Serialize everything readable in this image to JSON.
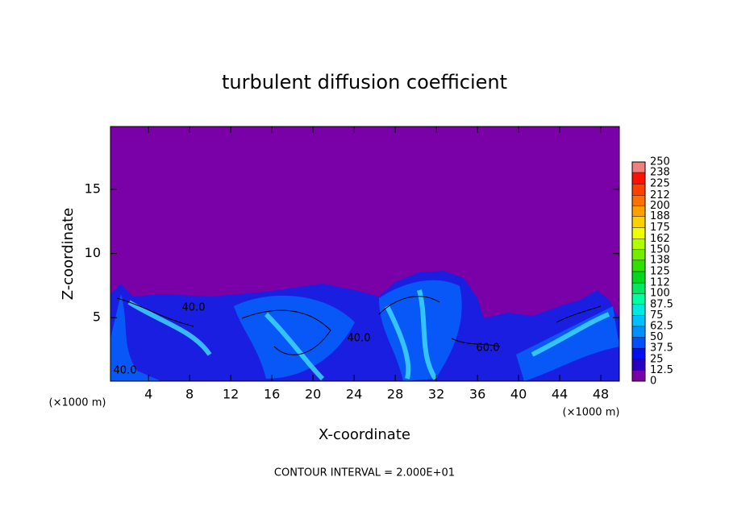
{
  "chart_data": {
    "type": "heatmap",
    "title": "turbulent diffusion coefficient",
    "xlabel": "X-coordinate",
    "ylabel": "Z-coordinate",
    "xunit": "(×1000 m)",
    "yunit": "(×1000 m)",
    "annotation": "CONTOUR INTERVAL = 2.000E+01",
    "contour_labels": [
      "40.0",
      "40.0",
      "40.0",
      "60.0"
    ],
    "xlim": [
      0.3,
      49.8
    ],
    "xticks": [
      4,
      8,
      12,
      16,
      20,
      24,
      28,
      32,
      36,
      40,
      44,
      48
    ],
    "ylim": [
      0.05,
      19.9
    ],
    "yticks": [
      5,
      10,
      15
    ],
    "colorbar": {
      "lim": [
        0,
        250
      ],
      "ticks": [
        0,
        12.5,
        25,
        37.5,
        50,
        62.5,
        75,
        87.5,
        100,
        112,
        125,
        138,
        150,
        162,
        175,
        188,
        200,
        212,
        225,
        238,
        250
      ],
      "colors": [
        "#7a00a8",
        "#2a00c0",
        "#0010f0",
        "#0050ff",
        "#0090ff",
        "#00c0ff",
        "#00e8e0",
        "#00ffa0",
        "#00e860",
        "#00d820",
        "#30e000",
        "#70f000",
        "#b0ff00",
        "#f0ff00",
        "#ffd000",
        "#ffa000",
        "#ff7000",
        "#ff4000",
        "#ff1000",
        "#f08080"
      ]
    }
  }
}
